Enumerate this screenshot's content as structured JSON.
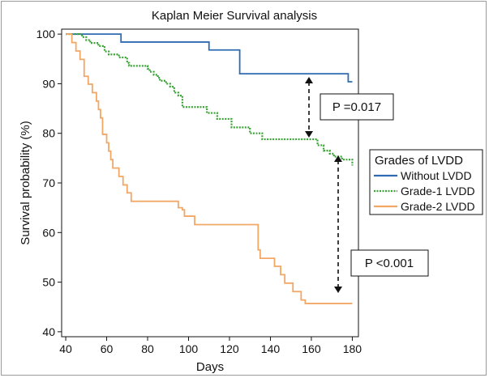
{
  "chart_data": {
    "type": "line",
    "title": "Kaplan Meier Survival analysis",
    "xlabel": "Days",
    "ylabel": "Survival probability (%)",
    "xlim": [
      38,
      183
    ],
    "ylim": [
      39,
      101
    ],
    "xticks": [
      40,
      60,
      80,
      100,
      120,
      140,
      160,
      180
    ],
    "yticks": [
      40,
      50,
      60,
      70,
      80,
      90,
      100
    ],
    "legend": {
      "title": "Grades of LVDD",
      "position": "right"
    },
    "annotations": [
      "P =0.017",
      "P <0.001"
    ],
    "series": [
      {
        "name": "Without LVDD",
        "color": "#2e6bb3",
        "style": "solid",
        "x": [
          40,
          67,
          110,
          125,
          178,
          180
        ],
        "y": [
          100,
          98.4,
          96.8,
          92,
          90.4,
          90.4
        ]
      },
      {
        "name": "Grade-1 LVDD",
        "color": "#3aa335",
        "style": "dotted",
        "x": [
          40,
          48,
          50,
          52,
          56,
          59,
          61,
          66,
          70,
          71,
          76,
          80,
          81,
          83,
          85,
          86,
          89,
          91,
          93,
          95,
          97,
          104,
          109,
          110,
          114,
          121,
          126,
          130,
          136,
          160,
          163,
          166,
          169,
          171,
          175,
          178,
          180
        ],
        "y": [
          100,
          99.4,
          98.8,
          98.2,
          97.6,
          96.5,
          95.9,
          95.3,
          94.2,
          93.6,
          93.6,
          93,
          92.4,
          91.8,
          91.2,
          90.6,
          90,
          89.4,
          88.2,
          87.6,
          85.3,
          85.3,
          84.1,
          84.1,
          82.9,
          81.2,
          81.2,
          80,
          78.8,
          78.8,
          77.6,
          76.5,
          75.9,
          75.3,
          74.7,
          74.7,
          73.5
        ]
      },
      {
        "name": "Grade-2 LVDD",
        "color": "#f3a765",
        "style": "solid",
        "x": [
          40,
          43,
          45,
          47,
          49,
          51,
          53,
          55,
          56,
          57,
          58,
          60,
          61,
          62,
          63,
          66,
          67,
          68,
          70,
          72,
          95,
          97,
          98,
          100,
          103,
          110,
          125,
          134,
          135,
          137,
          139,
          142,
          145,
          147,
          149,
          151,
          153,
          155,
          157,
          180
        ],
        "y": [
          100,
          98.3,
          96.6,
          94.9,
          91.5,
          89.9,
          88.2,
          86.5,
          84.8,
          83.1,
          79.8,
          78.1,
          76.4,
          74.7,
          73,
          71.3,
          71.3,
          69.6,
          68,
          66.3,
          65,
          64.6,
          63.3,
          63.3,
          61.6,
          61.6,
          61.6,
          56.5,
          54.8,
          54.8,
          54.8,
          53.2,
          51.5,
          49.8,
          49.8,
          48.1,
          48.1,
          46.4,
          45.7,
          45.7
        ]
      }
    ]
  }
}
